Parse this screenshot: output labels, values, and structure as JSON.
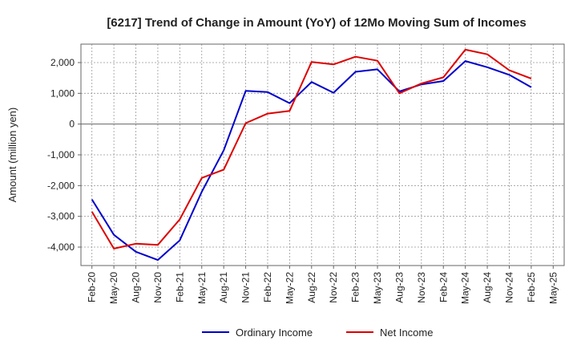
{
  "chart_data": {
    "type": "line",
    "title": "[6217]  Trend of Change in Amount (YoY) of 12Mo Moving Sum of Incomes",
    "xlabel": "",
    "ylabel": "Amount (million yen)",
    "ylim": [
      -4600,
      2600
    ],
    "yticks": [
      2000,
      1000,
      0,
      -1000,
      -2000,
      -3000,
      -4000
    ],
    "ytick_labels": [
      "2,000",
      "1,000",
      "0",
      "-1,000",
      "-2,000",
      "-3,000",
      "-4,000"
    ],
    "categories": [
      "Feb-20",
      "May-20",
      "Aug-20",
      "Nov-20",
      "Feb-21",
      "May-21",
      "Aug-21",
      "Nov-21",
      "Feb-22",
      "May-22",
      "Aug-22",
      "Nov-22",
      "Feb-23",
      "May-23",
      "Aug-23",
      "Nov-23",
      "Feb-24",
      "May-24",
      "Aug-24",
      "Nov-24",
      "Feb-25",
      "May-25"
    ],
    "grid": true,
    "legend_position": "bottom",
    "series": [
      {
        "name": "Ordinary Income",
        "color": "#0000cc",
        "values": [
          -2450,
          -3600,
          -4150,
          -4420,
          -3780,
          -2200,
          -850,
          1080,
          1040,
          680,
          1370,
          1020,
          1700,
          1780,
          1060,
          1290,
          1400,
          2050,
          1850,
          1600,
          1200,
          null
        ]
      },
      {
        "name": "Net Income",
        "color": "#dd0000",
        "values": [
          -2850,
          -4050,
          -3890,
          -3930,
          -3100,
          -1750,
          -1480,
          30,
          340,
          430,
          2020,
          1940,
          2190,
          2060,
          1000,
          1320,
          1520,
          2420,
          2270,
          1750,
          1480,
          null
        ]
      }
    ]
  }
}
